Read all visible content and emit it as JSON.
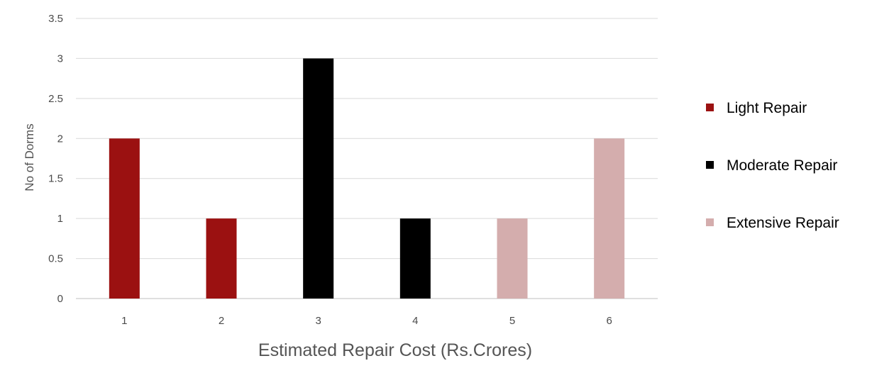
{
  "chart_data": {
    "type": "bar",
    "title": "",
    "xlabel": "Estimated Repair Cost (Rs.Crores)",
    "ylabel": "No of Dorms",
    "categories": [
      "1",
      "2",
      "3",
      "4",
      "5",
      "6"
    ],
    "ylim": [
      0,
      3.5
    ],
    "yticks": [
      "0",
      "0.5",
      "1",
      "1.5",
      "2",
      "2.5",
      "3",
      "3.5"
    ],
    "grid": true,
    "legend_position": "right",
    "series": [
      {
        "name": "Light Repair",
        "color": "#9b1111",
        "values": [
          2,
          1,
          null,
          null,
          null,
          null
        ]
      },
      {
        "name": "Moderate Repair",
        "color": "#000000",
        "values": [
          null,
          null,
          3,
          1,
          null,
          null
        ]
      },
      {
        "name": "Extensive Repair",
        "color": "#d4adad",
        "values": [
          null,
          null,
          null,
          null,
          1,
          2
        ]
      }
    ]
  }
}
